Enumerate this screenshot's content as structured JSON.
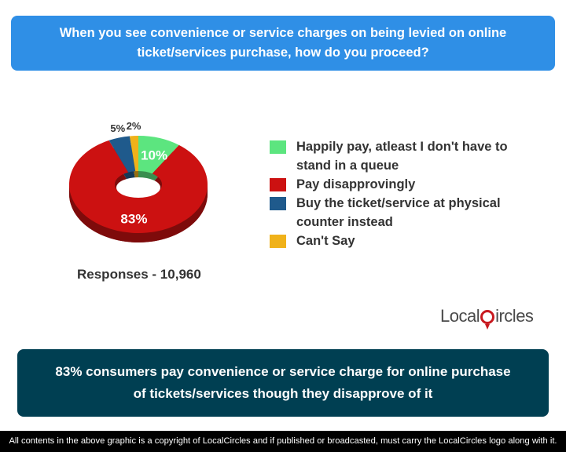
{
  "question": "When you see convenience or service charges on being levied on online ticket/services purchase, how do you proceed?",
  "responses_label": "Responses - 10,960",
  "logo_text": {
    "before": "Local",
    "after": "ircles"
  },
  "summary": "83% consumers pay convenience or service charge for online purchase of tickets/services though they disapprove of it",
  "footer": "All contents in the above graphic is a copyright of LocalCircles and if published or broadcasted, must carry the LocalCircles logo along with it.",
  "colors": {
    "header_bg": "#2f8fe6",
    "summary_bg": "#003f52",
    "footer_bg": "#000000",
    "logo_red": "#c8191f"
  },
  "chart_data": {
    "type": "pie",
    "style": "donut-3d",
    "slices": [
      {
        "label": "Happily pay, atleast I don't have to stand in a queue",
        "value": 10,
        "value_label": "10%",
        "color": "#5ce57f"
      },
      {
        "label": "Pay disapprovingly",
        "value": 83,
        "value_label": "83%",
        "color": "#cc1111"
      },
      {
        "label": "Buy the ticket/service at physical counter instead",
        "value": 5,
        "value_label": "5%",
        "color": "#1f5a8c"
      },
      {
        "label": "Can't Say",
        "value": 2,
        "value_label": "2%",
        "color": "#f0b21a"
      }
    ],
    "legend_position": "right"
  }
}
